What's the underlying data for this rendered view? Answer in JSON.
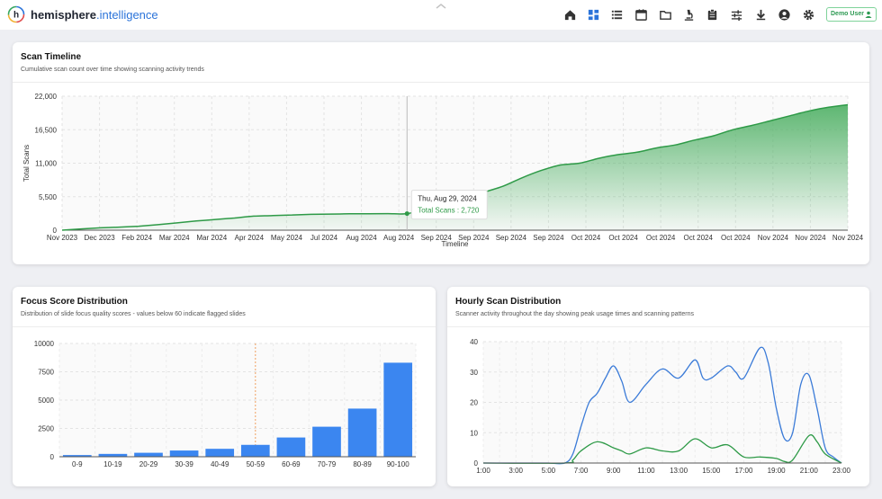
{
  "app": {
    "brand_name": "hemisphere",
    "brand_suffix": ".intelligence",
    "user_label": "Demo User"
  },
  "nav": {
    "icons": [
      "home-icon",
      "dashboard-icon",
      "list-icon",
      "calendar-icon",
      "folder-icon",
      "microscope-icon",
      "clipboard-icon",
      "sliders-icon",
      "download-icon",
      "account-icon",
      "settings-icon"
    ],
    "active": "dashboard-icon",
    "active_color": "#2b73d9",
    "icon_color": "#333333"
  },
  "scan_timeline": {
    "title": "Scan Timeline",
    "subtitle": "Cumulative scan count over time showing scanning activity trends",
    "tooltip": {
      "date": "Thu, Aug 29, 2024",
      "label": "Total Scans : 2,720"
    }
  },
  "focus_score": {
    "title": "Focus Score Distribution",
    "subtitle": "Distribution of slide focus quality scores - values below 60 indicate flagged slides"
  },
  "hourly_scan": {
    "title": "Hourly Scan Distribution",
    "subtitle": "Scanner activity throughout the day showing peak usage times and scanning patterns"
  },
  "chart_data": [
    {
      "type": "area",
      "ylabel": "Total Scans",
      "xlabel": "Timeline",
      "ylim": [
        0,
        22000
      ],
      "yticks": [
        "0",
        "5,500",
        "11,000",
        "16,500",
        "22,000"
      ],
      "x_tick_labels": [
        "Nov 2023",
        "Dec 2023",
        "Feb 2024",
        "Mar 2024",
        "Mar 2024",
        "Apr 2024",
        "May 2024",
        "Jul 2024",
        "Aug 2024",
        "Aug 2024",
        "Sep 2024",
        "Sep 2024",
        "Sep 2024",
        "Sep 2024",
        "Oct 2024",
        "Oct 2024",
        "Oct 2024",
        "Oct 2024",
        "Oct 2024",
        "Nov 2024",
        "Nov 2024",
        "Nov 2024"
      ],
      "series": [
        {
          "values": [
            [
              0,
              0
            ],
            [
              0.5,
              200
            ],
            [
              1,
              380
            ],
            [
              1.5,
              500
            ],
            [
              2,
              650
            ],
            [
              2.5,
              900
            ],
            [
              3,
              1200
            ],
            [
              3.5,
              1500
            ],
            [
              4,
              1750
            ],
            [
              4.5,
              2000
            ],
            [
              5,
              2300
            ],
            [
              5.5,
              2400
            ],
            [
              6,
              2500
            ],
            [
              6.5,
              2600
            ],
            [
              7,
              2650
            ],
            [
              7.5,
              2680
            ],
            [
              8,
              2700
            ],
            [
              8.5,
              2710
            ],
            [
              9,
              2720
            ],
            [
              9.5,
              3500
            ],
            [
              10,
              4300
            ],
            [
              10.5,
              5000
            ],
            [
              11,
              6200
            ],
            [
              11.5,
              7200
            ],
            [
              12,
              8600
            ],
            [
              12.5,
              9800
            ],
            [
              13,
              10700
            ],
            [
              13.5,
              11000
            ],
            [
              14,
              11800
            ],
            [
              14.5,
              12400
            ],
            [
              15,
              12800
            ],
            [
              15.5,
              13500
            ],
            [
              16,
              14000
            ],
            [
              16.5,
              14800
            ],
            [
              17,
              15500
            ],
            [
              17.5,
              16500
            ],
            [
              18,
              17200
            ],
            [
              18.5,
              18000
            ],
            [
              19,
              18800
            ],
            [
              19.5,
              19600
            ],
            [
              20,
              20200
            ],
            [
              20.5,
              20600
            ]
          ]
        }
      ],
      "line_color": "#2e9a47",
      "fill_color": "#4caf62",
      "grid": true
    },
    {
      "type": "bar",
      "categories": [
        "0-9",
        "10-19",
        "20-29",
        "30-39",
        "40-49",
        "50-59",
        "60-69",
        "70-79",
        "80-89",
        "90-100"
      ],
      "values": [
        150,
        250,
        350,
        550,
        700,
        1050,
        1700,
        2650,
        4250,
        8300
      ],
      "ylim": [
        0,
        10000
      ],
      "yticks": [
        "0",
        "2500",
        "5000",
        "7500",
        "10000"
      ],
      "threshold_category": "50-59",
      "bar_color": "#3b86f0",
      "threshold_color": "#f0a060",
      "grid": true
    },
    {
      "type": "line",
      "x_tick_labels": [
        "1:00",
        "3:00",
        "5:00",
        "7:00",
        "9:00",
        "11:00",
        "13:00",
        "15:00",
        "17:00",
        "19:00",
        "21:00",
        "23:00"
      ],
      "ylim": [
        0,
        40
      ],
      "yticks": [
        "0",
        "10",
        "20",
        "30",
        "40"
      ],
      "series": [
        {
          "values": [
            [
              0,
              0
            ],
            [
              1,
              0
            ],
            [
              2,
              0
            ],
            [
              3,
              0
            ],
            [
              4,
              0
            ],
            [
              5,
              0
            ],
            [
              5.5,
              3
            ],
            [
              6,
              12
            ],
            [
              6.5,
              20
            ],
            [
              7,
              23
            ],
            [
              7.5,
              28
            ],
            [
              8,
              32
            ],
            [
              8.5,
              27
            ],
            [
              9,
              20
            ],
            [
              10,
              26
            ],
            [
              11,
              31
            ],
            [
              12,
              28
            ],
            [
              13,
              34
            ],
            [
              13.5,
              28
            ],
            [
              14,
              28
            ],
            [
              15,
              32
            ],
            [
              15.5,
              30
            ],
            [
              16,
              28
            ],
            [
              17,
              38
            ],
            [
              17.5,
              33
            ],
            [
              18,
              18
            ],
            [
              18.5,
              8
            ],
            [
              19,
              10
            ],
            [
              19.5,
              26
            ],
            [
              20,
              29
            ],
            [
              20.5,
              18
            ],
            [
              21,
              5
            ],
            [
              21.5,
              2
            ],
            [
              22,
              0
            ]
          ],
          "color": "#3b7bd8"
        },
        {
          "values": [
            [
              0,
              0
            ],
            [
              5,
              0
            ],
            [
              5.5,
              1
            ],
            [
              6,
              4
            ],
            [
              7,
              7
            ],
            [
              8,
              5
            ],
            [
              8.5,
              4
            ],
            [
              9,
              3
            ],
            [
              10,
              5
            ],
            [
              11,
              4
            ],
            [
              12,
              4
            ],
            [
              13,
              8
            ],
            [
              14,
              5
            ],
            [
              15,
              6
            ],
            [
              16,
              2
            ],
            [
              17,
              2
            ],
            [
              18,
              1.5
            ],
            [
              18.5,
              0.5
            ],
            [
              19,
              1
            ],
            [
              20,
              9
            ],
            [
              20.5,
              7
            ],
            [
              21,
              3
            ],
            [
              22,
              0
            ]
          ],
          "color": "#2e9a47"
        }
      ],
      "grid": true
    }
  ]
}
